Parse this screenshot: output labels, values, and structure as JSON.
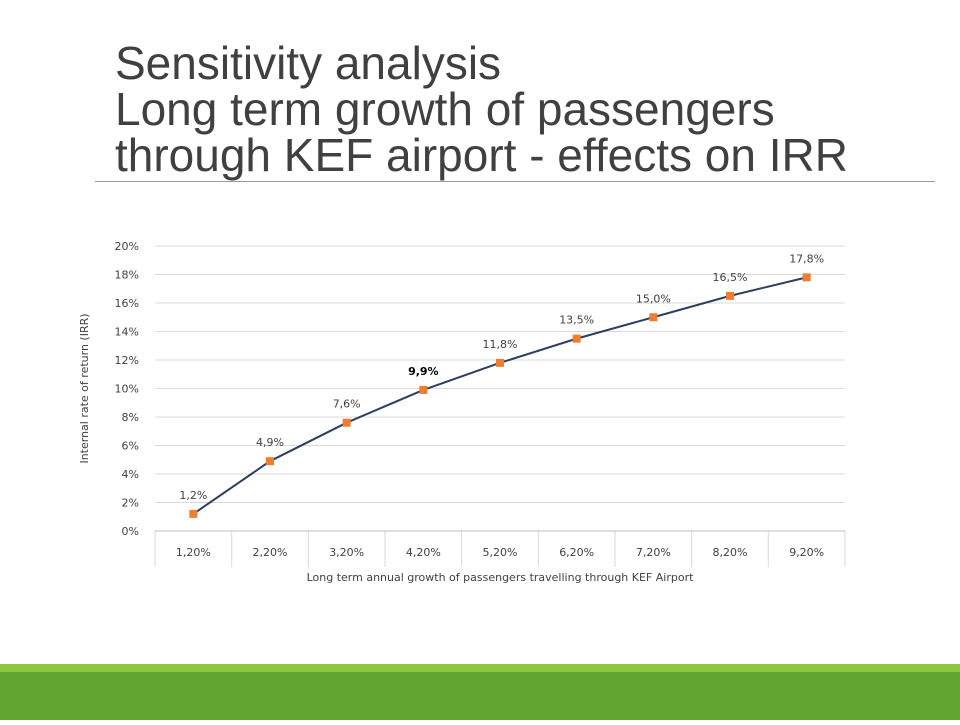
{
  "title": {
    "line1": "Sensitivity analysis",
    "line2": "Long term growth of passengers",
    "line3": "through KEF airport - effects on IRR"
  },
  "colors": {
    "line": "#2e3f5c",
    "marker": "#ed7d31",
    "grid": "#d9d9d9",
    "footer": "#62a531",
    "footer_strip": "#8dc63f",
    "title": "#404040"
  },
  "chart_data": {
    "type": "line",
    "categories": [
      "1,20%",
      "2,20%",
      "3,20%",
      "4,20%",
      "5,20%",
      "6,20%",
      "7,20%",
      "8,20%",
      "9,20%"
    ],
    "series": [
      {
        "values": [
          1.2,
          4.9,
          7.6,
          9.9,
          11.8,
          13.5,
          15.0,
          16.5,
          17.8
        ],
        "data_labels": [
          "1,2%",
          "4,9%",
          "7,6%",
          "9,9%",
          "11,8%",
          "13,5%",
          "15,0%",
          "16,5%",
          "17,8%"
        ]
      }
    ],
    "bold_label_index": 3,
    "ylim": [
      0,
      20
    ],
    "yticks": [
      "0%",
      "2%",
      "4%",
      "6%",
      "8%",
      "10%",
      "12%",
      "14%",
      "16%",
      "18%",
      "20%"
    ],
    "xlabel": "Long term annual growth of passengers travelling through KEF Airport",
    "ylabel": "Internal rate of return (IRR)",
    "grid": true,
    "legend": "none"
  }
}
